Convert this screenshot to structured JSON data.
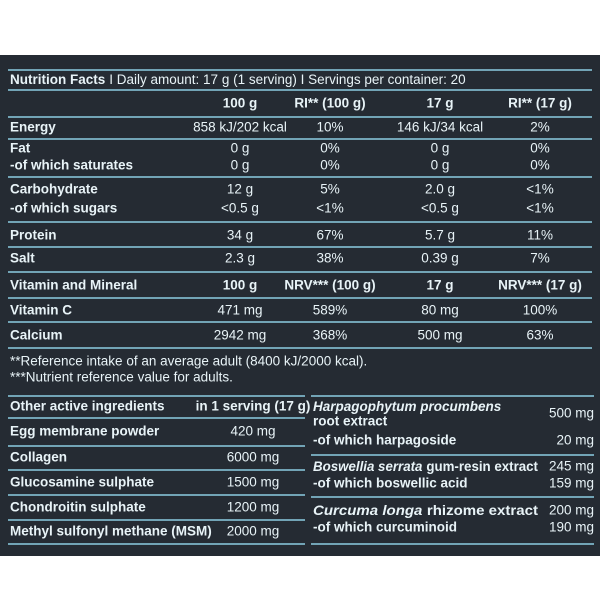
{
  "nutrition": {
    "title": "Nutrition Facts",
    "detail": "I Daily amount: 17 g (1 serving) I Servings per container: 20",
    "columns": [
      "100 g",
      "RI** (100 g)",
      "17 g",
      "RI** (17 g)"
    ],
    "groups": [
      [
        [
          "Energy",
          "858 kJ/202 kcal",
          "10%",
          "146 kJ/34 kcal",
          "2%"
        ]
      ],
      [
        [
          "Fat",
          "0 g",
          "0%",
          "0 g",
          "0%"
        ],
        [
          "-of which saturates",
          "0 g",
          "0%",
          "0 g",
          "0%"
        ]
      ],
      [
        [
          "Carbohydrate",
          "12 g",
          "5%",
          "2.0 g",
          "<1%"
        ],
        [
          "-of which sugars",
          "<0.5 g",
          "<1%",
          "<0.5 g",
          "<1%"
        ]
      ],
      [
        [
          "Protein",
          "34 g",
          "67%",
          "5.7 g",
          "11%"
        ]
      ],
      [
        [
          "Salt",
          "2.3 g",
          "38%",
          "0.39 g",
          "7%"
        ]
      ]
    ]
  },
  "vitamins": {
    "header": [
      "Vitamin and Mineral",
      "100 g",
      "NRV*** (100 g)",
      "17 g",
      "NRV*** (17 g)"
    ],
    "rows": [
      [
        "Vitamin C",
        "471 mg",
        "589%",
        "80 mg",
        "100%"
      ],
      [
        "Calcium",
        "2942 mg",
        "368%",
        "500 mg",
        "63%"
      ]
    ]
  },
  "footnotes": [
    "**Reference intake of an average adult (8400 kJ/2000 kcal).",
    "***Nutrient reference value for adults."
  ],
  "other": {
    "header": [
      "Other active ingredients",
      "in 1 serving (17 g)"
    ],
    "rows": [
      [
        "Egg membrane powder",
        "420 mg"
      ],
      [
        "Collagen",
        "6000 mg"
      ],
      [
        "Glucosamine sulphate",
        "1500 mg"
      ],
      [
        "Chondroitin sulphate",
        "1200 mg"
      ],
      [
        "Methyl sulfonyl methane (MSM)",
        "2000 mg"
      ]
    ]
  },
  "extracts": [
    {
      "name": "Harpagophytum procumbens",
      "part": "root extract",
      "value": "500 mg",
      "sub": "-of which harpagoside",
      "sub_value": "20 mg"
    },
    {
      "name": "Boswellia serrata",
      "part": "gum-resin extract",
      "value": "245 mg",
      "sub": "-of which boswellic acid",
      "sub_value": "159 mg"
    },
    {
      "name": "Curcuma longa",
      "part": "rhizome extract",
      "value": "200 mg",
      "sub": "-of which curcuminoid",
      "sub_value": "190 mg"
    }
  ]
}
